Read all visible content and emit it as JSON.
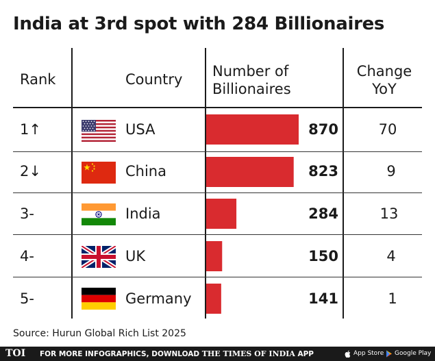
{
  "title": "India at 3rd spot with 284 Billionaires",
  "headers": {
    "rank": "Rank",
    "country": "Country",
    "number_line1": "Number of",
    "number_line2": "Billionaires",
    "change_line1": "Change",
    "change_line2": "YoY"
  },
  "rows": [
    {
      "rank": "1↑",
      "country": "USA",
      "flag": "usa-flag",
      "number": "870",
      "change": "70"
    },
    {
      "rank": "2↓",
      "country": "China",
      "flag": "china-flag",
      "number": "823",
      "change": "9"
    },
    {
      "rank": "3-",
      "country": "India",
      "flag": "india-flag",
      "number": "284",
      "change": "13"
    },
    {
      "rank": "4-",
      "country": "UK",
      "flag": "uk-flag",
      "number": "150",
      "change": "4"
    },
    {
      "rank": "5-",
      "country": "Germany",
      "flag": "germany-flag",
      "number": "141",
      "change": "1"
    }
  ],
  "chart_data": {
    "type": "bar",
    "title": "India at 3rd spot with 284 Billionaires",
    "categories": [
      "USA",
      "China",
      "India",
      "UK",
      "Germany"
    ],
    "values": [
      870,
      823,
      284,
      150,
      141
    ],
    "change_yoy": [
      70,
      9,
      13,
      4,
      1
    ],
    "orientation": "horizontal",
    "bar_color": "#d92b2f"
  },
  "source": "Source: Hurun Global Rich List 2025",
  "footer": {
    "logo": "TOI",
    "promo_prefix": "FOR MORE INFOGRAPHICS, DOWNLOAD",
    "brand": "THE TIMES OF INDIA",
    "promo_suffix": "APP",
    "app_store": "App Store",
    "google_play": "Google Play"
  }
}
